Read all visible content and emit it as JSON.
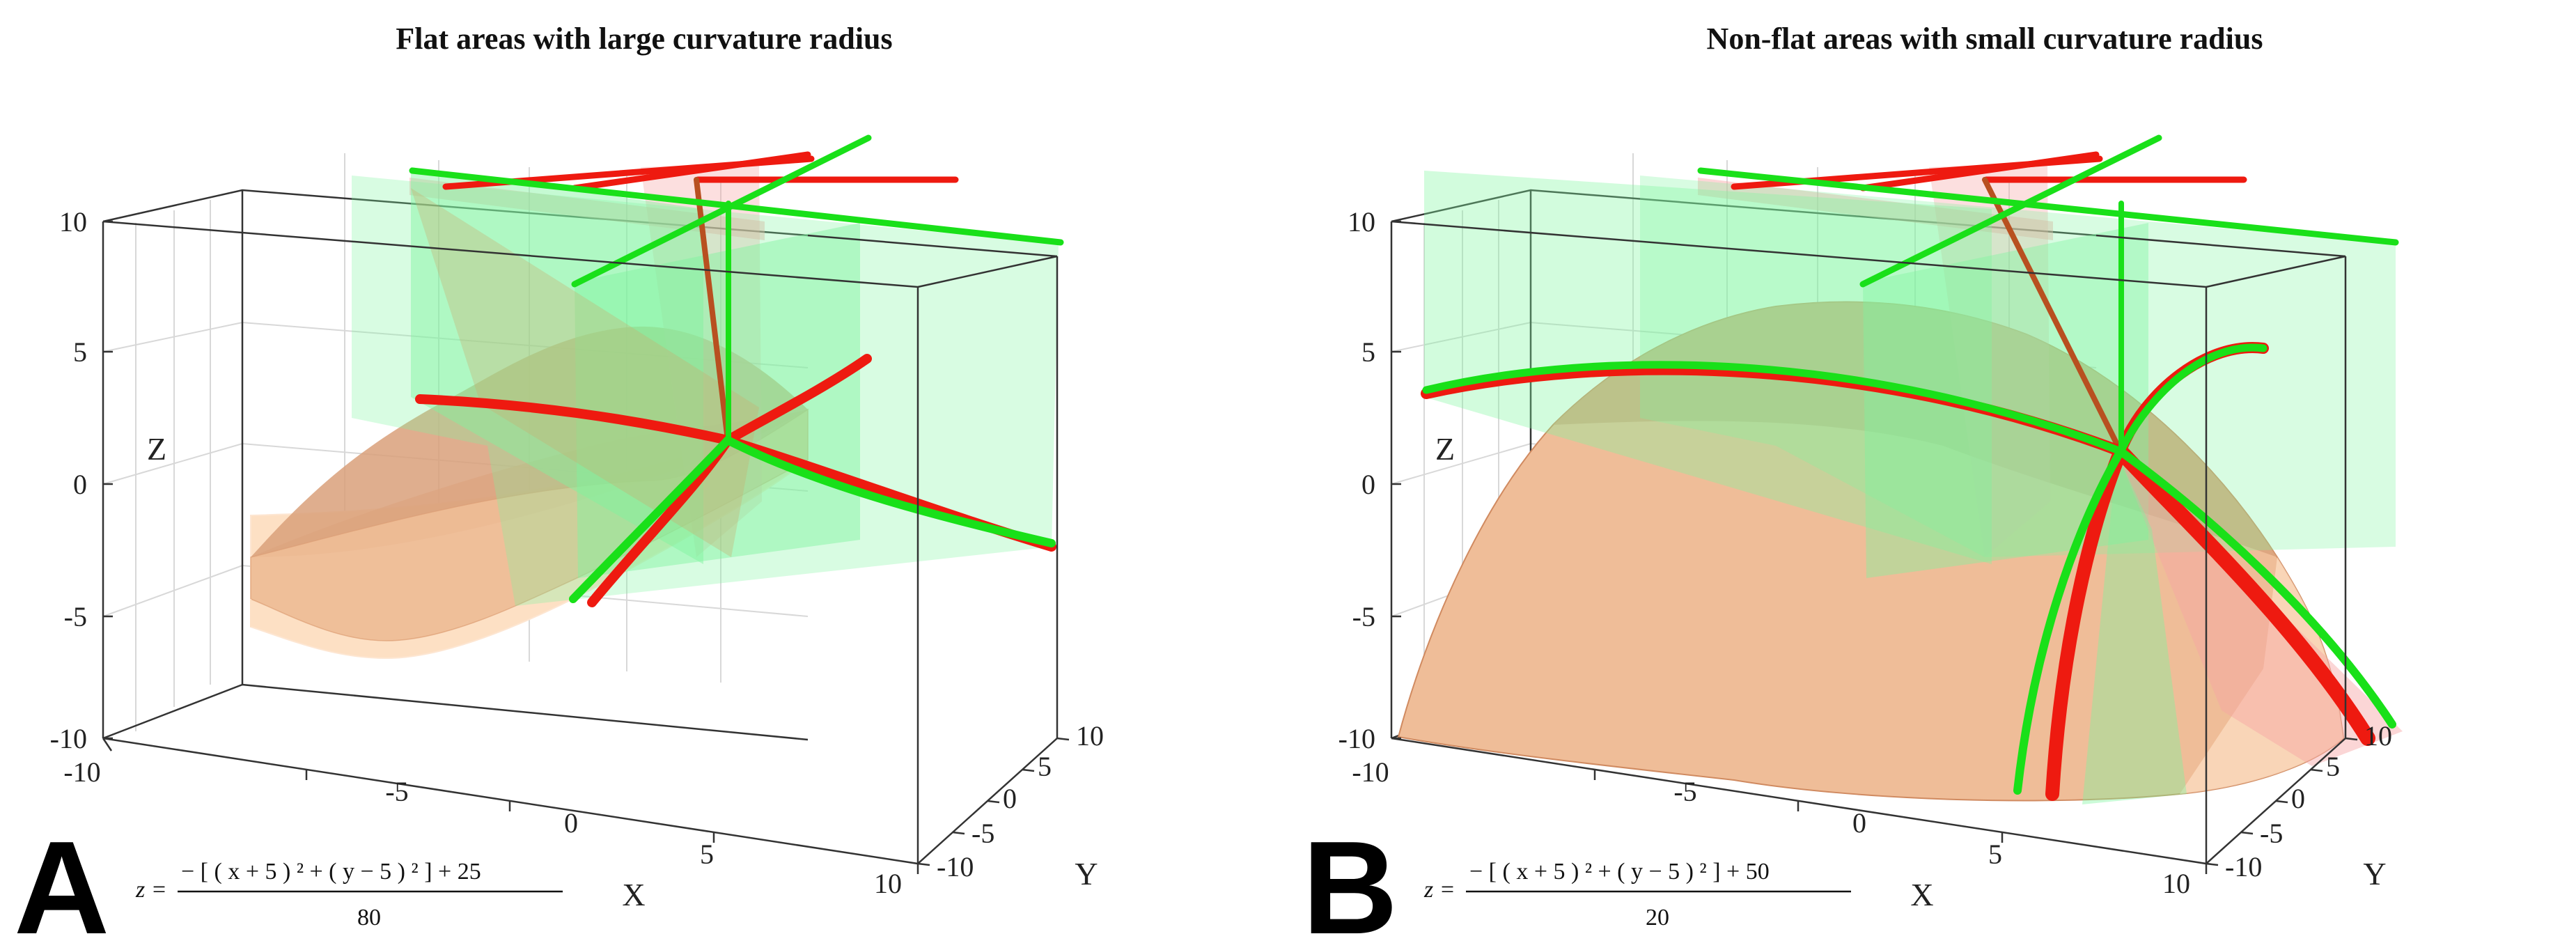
{
  "figure": {
    "colors": {
      "surface_fill": "#f6c9a2",
      "surface_mesh": "#c8825c",
      "surface_edge": "#fde0c4",
      "green": "#19e019",
      "red": "#ee1a10",
      "green_plane": "#7ef59e",
      "red_plane": "#f7a3a3",
      "box": "#222222",
      "grid": "#d8d8d8"
    }
  },
  "chart_data": [
    {
      "id": "A",
      "type": "surface3d",
      "title": "Flat areas with large curvature radius",
      "panel_letter": "A",
      "equation": {
        "lhs": "z =",
        "numerator": "− [ ( x + 5 ) ² + ( y − 5 ) ² ] + 25",
        "denominator": "80"
      },
      "xlabel": "X",
      "ylabel": "Y",
      "zlabel": "Z",
      "xlim": [
        -10,
        10
      ],
      "ylim": [
        -10,
        10
      ],
      "zlim": [
        -10,
        10
      ],
      "x_ticks": [
        "-10",
        "-5",
        "0",
        "5",
        "10"
      ],
      "y_ticks": [
        "-10",
        "-5",
        "0",
        "5",
        "10"
      ],
      "z_ticks": [
        "-10",
        "-5",
        "0",
        "5",
        "10"
      ],
      "surface": {
        "center_x": -5,
        "center_y": 5,
        "offset": 25,
        "divisor": 80
      },
      "grid": true
    },
    {
      "id": "B",
      "type": "surface3d",
      "title": "Non-flat areas with small curvature radius",
      "panel_letter": "B",
      "equation": {
        "lhs": "z =",
        "numerator": "− [ ( x + 5 ) ² + ( y − 5 ) ² ] + 50",
        "denominator": "20"
      },
      "xlabel": "X",
      "ylabel": "Y",
      "zlabel": "Z",
      "xlim": [
        -10,
        10
      ],
      "ylim": [
        -10,
        10
      ],
      "zlim": [
        -10,
        10
      ],
      "x_ticks": [
        "-10",
        "-5",
        "0",
        "5",
        "10"
      ],
      "y_ticks": [
        "-10",
        "-5",
        "0",
        "5",
        "10"
      ],
      "z_ticks": [
        "-10",
        "-5",
        "0",
        "5",
        "10"
      ],
      "surface": {
        "center_x": -5,
        "center_y": 5,
        "offset": 50,
        "divisor": 20
      },
      "grid": true
    }
  ]
}
